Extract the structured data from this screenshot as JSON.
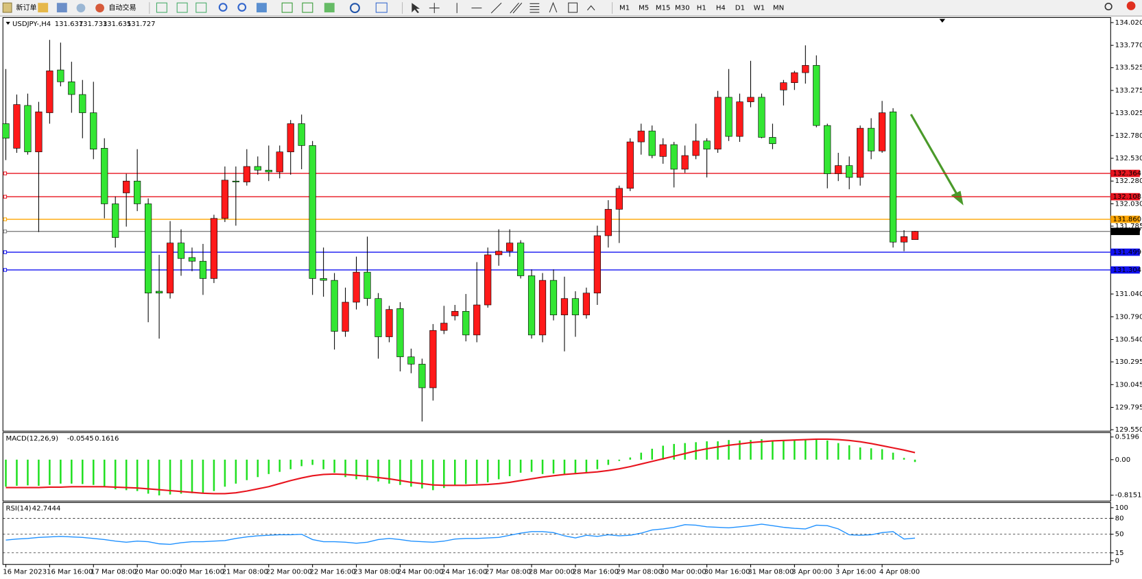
{
  "toolbar": {
    "buttons": [
      "新订单",
      "自动交易"
    ],
    "timeframes": [
      "M1",
      "M5",
      "M15",
      "M30",
      "H1",
      "H4",
      "D1",
      "W1",
      "MN"
    ]
  },
  "chart_data": [
    {
      "type": "candlestick",
      "symbol": "USDJPY-,H4",
      "categories": [
        "16 Mar 2023",
        null,
        null,
        null,
        "16 Mar 16:00",
        null,
        null,
        null,
        "17 Mar 08:00",
        null,
        null,
        null,
        "20 Mar 00:00",
        null,
        null,
        null,
        "20 Mar 16:00",
        null,
        null,
        null,
        "21 Mar 08:00",
        null,
        null,
        null,
        "22 Mar 00:00",
        null,
        null,
        null,
        "22 Mar 16:00",
        null,
        null,
        null,
        "23 Mar 08:00",
        null,
        null,
        null,
        "24 Mar 00:00",
        null,
        null,
        null,
        "24 Mar 16:00",
        null,
        null,
        null,
        "27 Mar 08:00",
        null,
        null,
        null,
        "28 Mar 00:00",
        null,
        null,
        null,
        "28 Mar 16:00",
        null,
        null,
        null,
        "29 Mar 08:00",
        null,
        null,
        null,
        "30 Mar 00:00",
        null,
        null,
        null,
        "30 Mar 16:00",
        null,
        null,
        null,
        "31 Mar 08:00",
        null,
        null,
        null,
        "3 Apr 00:00",
        null,
        null,
        null,
        "3 Apr 16:00",
        null,
        null,
        null,
        "4 Apr 08:00",
        null,
        null,
        null
      ],
      "open": [
        132.91,
        132.64,
        133.11,
        132.6,
        133.03,
        133.5,
        133.37,
        133.23,
        133.03,
        132.64,
        132.03,
        132.15,
        132.28,
        132.03,
        131.07,
        131.05,
        131.6,
        131.44,
        131.4,
        131.21,
        131.87,
        132.28,
        132.27,
        132.44,
        132.4,
        132.38,
        132.6,
        132.91,
        132.67,
        131.21,
        131.19,
        130.63,
        130.95,
        131.28,
        130.99,
        130.57,
        130.88,
        130.35,
        130.27,
        130.01,
        130.64,
        130.8,
        130.85,
        130.59,
        130.92,
        131.47,
        131.51,
        131.6,
        131.24,
        130.59,
        131.19,
        130.81,
        130.99,
        130.81,
        131.05,
        131.68,
        131.97,
        132.2,
        132.71,
        132.83,
        132.55,
        132.68,
        132.41,
        132.56,
        132.72,
        132.63,
        133.2,
        132.77,
        133.15,
        133.2,
        132.76,
        133.28,
        133.36,
        133.47,
        133.55,
        132.89,
        132.36,
        132.45,
        132.32,
        132.86,
        132.61,
        133.04,
        131.61,
        131.637
      ],
      "high": [
        133.51,
        133.23,
        133.24,
        133.15,
        133.83,
        133.8,
        133.59,
        133.39,
        133.37,
        132.75,
        132.11,
        132.36,
        132.63,
        132.09,
        131.47,
        131.84,
        131.75,
        131.55,
        131.59,
        131.91,
        132.44,
        132.44,
        132.63,
        132.55,
        132.67,
        132.67,
        132.95,
        133.01,
        132.72,
        131.55,
        131.27,
        131.11,
        131.45,
        131.67,
        131.05,
        130.91,
        130.95,
        130.44,
        130.33,
        130.71,
        130.91,
        130.92,
        131.04,
        131.39,
        131.55,
        131.75,
        131.75,
        131.63,
        131.31,
        131.27,
        131.31,
        131.23,
        131.07,
        131.11,
        131.79,
        132.07,
        132.23,
        132.75,
        132.91,
        132.89,
        132.75,
        132.71,
        132.67,
        132.91,
        132.75,
        133.27,
        133.51,
        133.24,
        133.6,
        133.24,
        132.91,
        133.39,
        133.49,
        133.77,
        133.66,
        132.91,
        132.59,
        132.55,
        132.89,
        132.97,
        133.16,
        133.08,
        131.74,
        131.733
      ],
      "low": [
        132.51,
        132.59,
        132.57,
        131.72,
        132.91,
        133.32,
        133.03,
        132.75,
        132.52,
        131.87,
        131.55,
        131.78,
        131.95,
        130.73,
        130.55,
        130.99,
        131.24,
        131.29,
        131.03,
        131.16,
        131.83,
        131.79,
        132.23,
        132.35,
        132.28,
        132.31,
        132.35,
        132.41,
        131.03,
        131.01,
        130.43,
        130.57,
        130.87,
        130.91,
        130.33,
        130.51,
        130.19,
        130.17,
        129.64,
        129.87,
        130.6,
        130.75,
        130.52,
        130.51,
        130.89,
        131.35,
        131.45,
        131.21,
        130.55,
        130.51,
        130.75,
        130.41,
        130.57,
        130.77,
        130.92,
        131.55,
        131.6,
        132.17,
        132.57,
        132.53,
        132.47,
        132.21,
        132.37,
        132.52,
        132.32,
        132.59,
        132.72,
        132.71,
        133.09,
        132.75,
        132.63,
        133.11,
        133.28,
        133.35,
        132.87,
        132.2,
        132.28,
        132.19,
        132.23,
        132.52,
        132.59,
        131.55,
        131.51,
        131.635
      ],
      "close": [
        132.75,
        133.12,
        132.6,
        133.04,
        133.49,
        133.37,
        133.23,
        133.03,
        132.63,
        132.03,
        131.66,
        132.28,
        132.03,
        131.05,
        131.05,
        131.6,
        131.43,
        131.4,
        131.21,
        131.87,
        132.29,
        132.27,
        132.44,
        132.4,
        132.38,
        132.6,
        132.91,
        132.67,
        131.21,
        131.19,
        130.63,
        130.95,
        131.28,
        130.99,
        130.57,
        130.87,
        130.35,
        130.27,
        130.01,
        130.64,
        130.72,
        130.85,
        130.59,
        130.92,
        131.47,
        131.51,
        131.6,
        131.24,
        130.59,
        131.19,
        130.81,
        130.99,
        130.81,
        131.05,
        131.68,
        131.97,
        132.2,
        132.71,
        132.83,
        132.56,
        132.68,
        132.41,
        132.56,
        132.72,
        132.63,
        133.2,
        132.77,
        133.15,
        133.2,
        132.76,
        132.69,
        133.36,
        133.47,
        133.55,
        132.89,
        132.36,
        132.45,
        132.32,
        132.86,
        132.61,
        133.03,
        131.61,
        131.67,
        131.727
      ],
      "up_color": "#ff1a1a",
      "down_color": "#33e633",
      "ylim": [
        129.534,
        134.076
      ],
      "yticks": [
        {
          "value": 134.02,
          "label": "134.020"
        },
        {
          "value": 133.77,
          "label": "133.770"
        },
        133.525,
        133.275,
        133.025,
        {
          "value": 132.78,
          "label": "132.780"
        },
        {
          "value": 132.53,
          "label": "132.530"
        },
        {
          "value": 132.28,
          "label": "132.280"
        },
        {
          "value": 132.03,
          "label": "132.030"
        },
        131.785,
        {
          "value": 131.04,
          "label": "131.040"
        },
        {
          "value": 130.79,
          "label": "130.790"
        },
        {
          "value": 130.54,
          "label": "130.540"
        },
        130.295,
        130.045,
        129.795,
        {
          "value": 129.55,
          "label": "129.550"
        }
      ],
      "levels": [
        {
          "value": 132.364,
          "color": "#e8141e"
        },
        {
          "value": 132.108,
          "color": "#e8141e"
        },
        {
          "value": 131.86,
          "label": "131.860",
          "color": "#ffa500"
        },
        {
          "value": 131.727,
          "color": "#808080"
        },
        {
          "value": 131.499,
          "color": "#1010f0"
        },
        {
          "value": 131.304,
          "color": "#1010f0"
        }
      ]
    },
    {
      "type": "macd",
      "title": "MACD(12,26,9)",
      "histogram": [
        -0.62,
        -0.6,
        -0.59,
        -0.6,
        -0.58,
        -0.55,
        -0.55,
        -0.56,
        -0.58,
        -0.62,
        -0.68,
        -0.7,
        -0.72,
        -0.78,
        -0.82,
        -0.8,
        -0.78,
        -0.77,
        -0.78,
        -0.72,
        -0.62,
        -0.55,
        -0.47,
        -0.4,
        -0.33,
        -0.28,
        -0.22,
        -0.15,
        -0.12,
        -0.22,
        -0.3,
        -0.4,
        -0.45,
        -0.47,
        -0.5,
        -0.55,
        -0.58,
        -0.62,
        -0.66,
        -0.7,
        -0.65,
        -0.6,
        -0.56,
        -0.55,
        -0.52,
        -0.45,
        -0.38,
        -0.3,
        -0.28,
        -0.33,
        -0.32,
        -0.33,
        -0.31,
        -0.3,
        -0.22,
        -0.12,
        -0.03,
        0.05,
        0.16,
        0.25,
        0.32,
        0.36,
        0.38,
        0.4,
        0.42,
        0.42,
        0.45,
        0.44,
        0.45,
        0.47,
        0.44,
        0.43,
        0.44,
        0.46,
        0.47,
        0.44,
        0.38,
        0.33,
        0.28,
        0.26,
        0.24,
        0.16,
        0.04,
        -0.0545
      ],
      "signal": [
        -0.64,
        -0.64,
        -0.64,
        -0.64,
        -0.63,
        -0.63,
        -0.62,
        -0.62,
        -0.62,
        -0.62,
        -0.63,
        -0.64,
        -0.65,
        -0.67,
        -0.69,
        -0.71,
        -0.73,
        -0.75,
        -0.77,
        -0.78,
        -0.78,
        -0.76,
        -0.72,
        -0.67,
        -0.62,
        -0.55,
        -0.48,
        -0.42,
        -0.37,
        -0.34,
        -0.33,
        -0.34,
        -0.36,
        -0.38,
        -0.41,
        -0.44,
        -0.48,
        -0.52,
        -0.55,
        -0.58,
        -0.59,
        -0.59,
        -0.59,
        -0.58,
        -0.57,
        -0.55,
        -0.52,
        -0.48,
        -0.44,
        -0.4,
        -0.37,
        -0.34,
        -0.32,
        -0.3,
        -0.28,
        -0.25,
        -0.21,
        -0.16,
        -0.1,
        -0.04,
        0.02,
        0.08,
        0.14,
        0.2,
        0.25,
        0.29,
        0.33,
        0.36,
        0.39,
        0.41,
        0.43,
        0.44,
        0.45,
        0.46,
        0.47,
        0.47,
        0.46,
        0.44,
        0.41,
        0.37,
        0.32,
        0.27,
        0.22,
        0.1616
      ],
      "histogram_color": "#22e022",
      "signal_color": "#e8141e",
      "ylim": [
        -0.95,
        0.62
      ],
      "yticks": [
        0.5196,
        {
          "value": 0,
          "label": "0.00"
        },
        -0.8151
      ]
    },
    {
      "type": "line",
      "title": "RSI(14)",
      "values": [
        39,
        41,
        42,
        44,
        45,
        46,
        45,
        44,
        42,
        40,
        37,
        35,
        37,
        36,
        32,
        31,
        34,
        36,
        36,
        37,
        38,
        42,
        45,
        47,
        48,
        49,
        49,
        50,
        40,
        36,
        36,
        35,
        33,
        35,
        40,
        42,
        40,
        37,
        36,
        35,
        37,
        41,
        42,
        42,
        43,
        44,
        48,
        52,
        55,
        55,
        53,
        47,
        43,
        48,
        46,
        49,
        47,
        48,
        52,
        58,
        60,
        63,
        68,
        67,
        64,
        63,
        62,
        64,
        66,
        69,
        66,
        63,
        61,
        60,
        67,
        66,
        60,
        49,
        48,
        49,
        53,
        55,
        41,
        42.7444
      ],
      "color": "#1e90ff",
      "ylim": [
        -6.8,
        109.6
      ],
      "yticks": [
        100,
        80,
        50,
        15,
        0
      ],
      "levels": [
        80,
        50,
        15
      ]
    }
  ]
}
